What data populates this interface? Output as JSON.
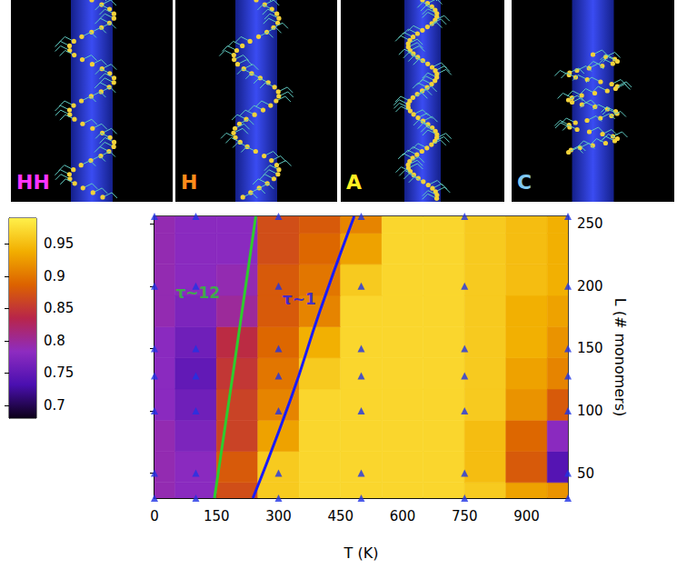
{
  "panels": [
    {
      "label": "HH",
      "color": "#ff33ff"
    },
    {
      "label": "H",
      "color": "#ff8c1a"
    },
    {
      "label": "A",
      "color": "#ffee22"
    },
    {
      "label": "C",
      "color": "#80c8f0"
    }
  ],
  "chart_data": {
    "type": "heatmap",
    "xlabel": "T (K)",
    "ylabel": "L (# monomers)",
    "xlim": [
      0,
      1000
    ],
    "ylim": [
      30,
      256
    ],
    "xticks": [
      0,
      150,
      300,
      450,
      600,
      750,
      900
    ],
    "yticks": [
      50,
      100,
      150,
      200,
      250
    ],
    "heatmap": {
      "x": [
        0,
        100,
        200,
        300,
        400,
        500,
        600,
        700,
        800,
        900,
        1000
      ],
      "y": [
        30,
        55,
        80,
        105,
        130,
        155,
        180,
        205,
        230,
        255
      ],
      "values": [
        [
          0.79,
          0.78,
          0.87,
          0.96,
          0.97,
          0.97,
          0.97,
          0.97,
          0.96,
          0.93,
          0.92
        ],
        [
          0.79,
          0.78,
          0.88,
          0.96,
          0.97,
          0.97,
          0.97,
          0.97,
          0.95,
          0.88,
          0.74
        ],
        [
          0.79,
          0.77,
          0.86,
          0.93,
          0.97,
          0.97,
          0.97,
          0.97,
          0.95,
          0.89,
          0.78
        ],
        [
          0.78,
          0.76,
          0.86,
          0.91,
          0.97,
          0.97,
          0.97,
          0.97,
          0.96,
          0.92,
          0.88
        ],
        [
          0.78,
          0.75,
          0.85,
          0.9,
          0.96,
          0.97,
          0.97,
          0.97,
          0.96,
          0.93,
          0.91
        ],
        [
          0.78,
          0.76,
          0.84,
          0.89,
          0.94,
          0.97,
          0.97,
          0.97,
          0.96,
          0.94,
          0.92
        ],
        [
          0.79,
          0.77,
          0.8,
          0.88,
          0.91,
          0.97,
          0.97,
          0.97,
          0.96,
          0.94,
          0.93
        ],
        [
          0.79,
          0.78,
          0.79,
          0.88,
          0.9,
          0.96,
          0.97,
          0.97,
          0.96,
          0.95,
          0.94
        ],
        [
          0.79,
          0.78,
          0.78,
          0.87,
          0.89,
          0.93,
          0.97,
          0.97,
          0.96,
          0.95,
          0.94
        ],
        [
          0.79,
          0.78,
          0.78,
          0.87,
          0.88,
          0.91,
          0.97,
          0.97,
          0.96,
          0.95,
          0.94
        ]
      ]
    },
    "colorbar": {
      "range": [
        0.68,
        0.99
      ],
      "ticks": [
        0.7,
        0.75,
        0.8,
        0.85,
        0.9,
        0.95
      ]
    },
    "series": [
      {
        "name": "τ~12",
        "type": "line",
        "color": "#2ecc2e",
        "x": [
          145,
          190,
          245
        ],
        "y": [
          30,
          130,
          256
        ],
        "label_at": [
          105,
          195
        ]
      },
      {
        "name": "τ~1",
        "type": "line",
        "color": "#1a1aff",
        "x": [
          238,
          330,
          400,
          483
        ],
        "y": [
          30,
          110,
          180,
          256
        ],
        "label_at": [
          350,
          190
        ]
      }
    ],
    "points": {
      "color": "#1f33e6",
      "marker": "triangle",
      "x": [
        0,
        100,
        300,
        500,
        750,
        1000,
        0,
        100,
        300,
        500,
        750,
        1000,
        0,
        100,
        300,
        500,
        750,
        1000,
        0,
        100,
        300,
        500,
        750,
        1000,
        0,
        100,
        300,
        500,
        750,
        1000,
        0,
        100,
        300,
        500,
        750,
        1000,
        0,
        100,
        300,
        500,
        750,
        1000
      ],
      "y": [
        30,
        30,
        30,
        30,
        30,
        30,
        50,
        50,
        50,
        50,
        50,
        50,
        100,
        100,
        100,
        100,
        100,
        100,
        128,
        128,
        128,
        128,
        128,
        128,
        150,
        150,
        150,
        150,
        150,
        150,
        200,
        200,
        200,
        200,
        200,
        200,
        256,
        256,
        256,
        256,
        256,
        256
      ]
    }
  }
}
